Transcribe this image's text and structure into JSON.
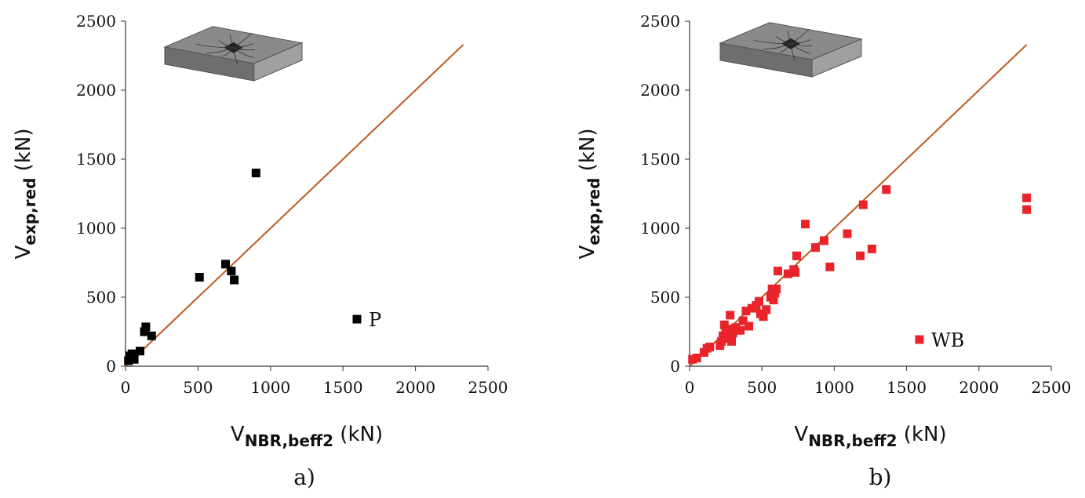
{
  "chart_data": [
    {
      "panel": "a)",
      "type": "scatter",
      "xlabel": {
        "main": "V",
        "sub": "NBR,beff2",
        "unit": " (kN)"
      },
      "ylabel": {
        "main": "V",
        "sub": "exp,red",
        "unit": " (kN)"
      },
      "xlim": [
        0,
        2500
      ],
      "ylim": [
        0,
        2500
      ],
      "xticks": [
        "0",
        "500",
        "1000",
        "1500",
        "2000",
        "2500"
      ],
      "yticks": [
        "0",
        "500",
        "1000",
        "1500",
        "2000",
        "2500"
      ],
      "grid": false,
      "marker_color": "#000000",
      "line_color": "#c0581c",
      "reference_line": {
        "x": [
          0,
          2330
        ],
        "y": [
          0,
          2330
        ]
      },
      "legend": {
        "label": "P",
        "position": "bottom-right"
      },
      "inset_icon": "punching-slab-icon",
      "series": [
        {
          "name": "P",
          "points": [
            [
              20,
              40
            ],
            [
              30,
              75
            ],
            [
              40,
              55
            ],
            [
              45,
              90
            ],
            [
              55,
              65
            ],
            [
              60,
              50
            ],
            [
              100,
              110
            ],
            [
              130,
              250
            ],
            [
              140,
              285
            ],
            [
              180,
              220
            ],
            [
              510,
              645
            ],
            [
              690,
              740
            ],
            [
              730,
              690
            ],
            [
              750,
              625
            ],
            [
              900,
              1400
            ]
          ]
        }
      ]
    },
    {
      "panel": "b)",
      "type": "scatter",
      "xlabel": {
        "main": "V",
        "sub": "NBR,beff2",
        "unit": " (kN)"
      },
      "ylabel": {
        "main": "V",
        "sub": "exp,red",
        "unit": " (kN)"
      },
      "xlim": [
        0,
        2500
      ],
      "ylim": [
        0,
        2500
      ],
      "xticks": [
        "0",
        "500",
        "1000",
        "1500",
        "2000",
        "2500"
      ],
      "yticks": [
        "0",
        "500",
        "1000",
        "1500",
        "2000",
        "2500"
      ],
      "grid": false,
      "marker_color": "#e8242a",
      "line_color": "#c0581c",
      "reference_line": {
        "x": [
          0,
          2330
        ],
        "y": [
          0,
          2330
        ]
      },
      "legend": {
        "label": "WB",
        "position": "bottom-right"
      },
      "inset_icon": "punching-slab-icon",
      "series": [
        {
          "name": "WB",
          "points": [
            [
              20,
              50
            ],
            [
              50,
              60
            ],
            [
              100,
              100
            ],
            [
              120,
              130
            ],
            [
              140,
              140
            ],
            [
              210,
              150
            ],
            [
              220,
              180
            ],
            [
              230,
              220
            ],
            [
              240,
              300
            ],
            [
              250,
              250
            ],
            [
              260,
              200
            ],
            [
              270,
              270
            ],
            [
              280,
              370
            ],
            [
              290,
              180
            ],
            [
              300,
              240
            ],
            [
              320,
              280
            ],
            [
              350,
              260
            ],
            [
              370,
              330
            ],
            [
              390,
              400
            ],
            [
              410,
              290
            ],
            [
              430,
              420
            ],
            [
              460,
              440
            ],
            [
              480,
              470
            ],
            [
              490,
              380
            ],
            [
              510,
              360
            ],
            [
              530,
              410
            ],
            [
              560,
              500
            ],
            [
              570,
              560
            ],
            [
              580,
              480
            ],
            [
              590,
              530
            ],
            [
              600,
              560
            ],
            [
              610,
              690
            ],
            [
              680,
              670
            ],
            [
              720,
              700
            ],
            [
              730,
              680
            ],
            [
              740,
              800
            ],
            [
              800,
              1030
            ],
            [
              870,
              860
            ],
            [
              930,
              910
            ],
            [
              970,
              720
            ],
            [
              1090,
              960
            ],
            [
              1180,
              800
            ],
            [
              1200,
              1170
            ],
            [
              1260,
              850
            ],
            [
              1360,
              1280
            ],
            [
              2330,
              1220
            ],
            [
              2330,
              1135
            ]
          ]
        }
      ]
    }
  ]
}
